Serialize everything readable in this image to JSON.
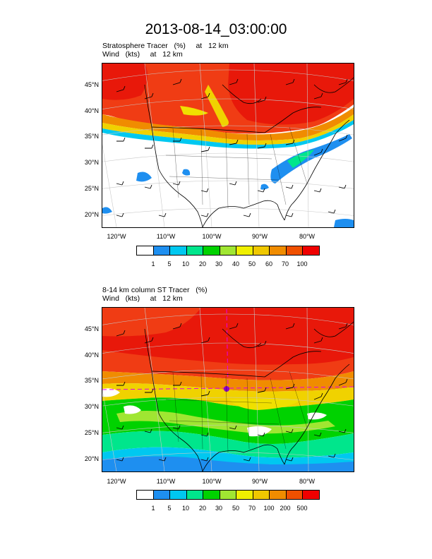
{
  "title": "2013-08-14_03:00:00",
  "panel1": {
    "subtitle_line1": "Stratosphere Tracer   (%)     at   12 km",
    "subtitle_line2": "Wind   (kts)     at   12 km",
    "lat_labels": [
      "45°N",
      "40°N",
      "35°N",
      "30°N",
      "25°N",
      "20°N"
    ],
    "lon_labels": [
      "120°W",
      "110°W",
      "100°W",
      "90°W",
      "80°W"
    ],
    "colorbar_labels": [
      "1",
      "5",
      "10",
      "20",
      "30",
      "40",
      "50",
      "60",
      "70",
      "100"
    ]
  },
  "panel2": {
    "subtitle_line1": "8-14 km column ST Tracer   (%)",
    "subtitle_line2": "Wind   (kts)     at   12 km",
    "lat_labels": [
      "45°N",
      "40°N",
      "35°N",
      "30°N",
      "25°N",
      "20°N"
    ],
    "lon_labels": [
      "120°W",
      "110°W",
      "100°W",
      "90°W",
      "80°W"
    ],
    "colorbar_labels": [
      "1",
      "5",
      "10",
      "20",
      "30",
      "50",
      "70",
      "100",
      "200",
      "500"
    ]
  },
  "colorbar_colors": [
    "#ffffff",
    "#1e8ff0",
    "#00c8f0",
    "#00e68c",
    "#00d200",
    "#a0e632",
    "#f0f000",
    "#f0c800",
    "#f08c00",
    "#f05000",
    "#f00000"
  ]
}
